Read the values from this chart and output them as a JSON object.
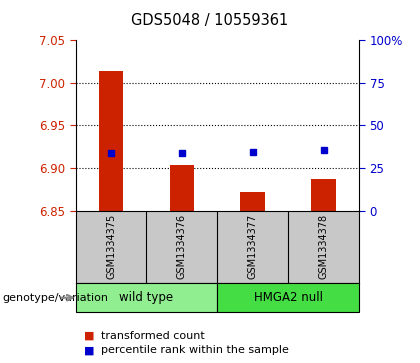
{
  "title": "GDS5048 / 10559361",
  "samples": [
    "GSM1334375",
    "GSM1334376",
    "GSM1334377",
    "GSM1334378"
  ],
  "group_labels": [
    "wild type",
    "HMGA2 null"
  ],
  "group_colors": [
    "#90ee90",
    "#66dd66"
  ],
  "bar_values": [
    7.013,
    6.903,
    6.872,
    6.887
  ],
  "bar_bottom": 6.85,
  "blue_values": [
    6.917,
    6.918,
    6.919,
    6.921
  ],
  "ylim_left": [
    6.85,
    7.05
  ],
  "yticks_left": [
    6.85,
    6.9,
    6.95,
    7.0,
    7.05
  ],
  "yticks_right": [
    0,
    25,
    50,
    75,
    100
  ],
  "ylim_right": [
    0,
    100
  ],
  "bar_color": "#cc2200",
  "dot_color": "#0000cc",
  "left_tick_color": "#cc2200",
  "right_tick_color": "#0000cc",
  "grid_yticks": [
    6.9,
    6.95,
    7.0
  ],
  "legend_items": [
    "transformed count",
    "percentile rank within the sample"
  ],
  "genotype_label": "genotype/variation",
  "sample_area_color": "#c8c8c8",
  "bar_width": 0.35
}
